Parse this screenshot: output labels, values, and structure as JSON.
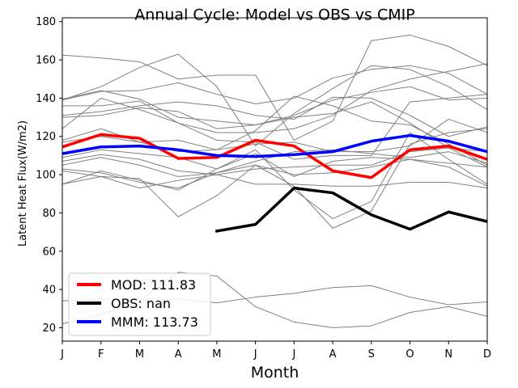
{
  "chart_data": {
    "type": "line",
    "title": "Annual Cycle: Model vs OBS vs CMIP",
    "xlabel": "Month",
    "ylabel": "Latent Heat Flux(W/m2)",
    "categories": [
      "J",
      "F",
      "M",
      "A",
      "M",
      "J",
      "J",
      "A",
      "S",
      "O",
      "N",
      "D"
    ],
    "ylim": [
      13,
      182
    ],
    "yticks": [
      20,
      40,
      60,
      80,
      100,
      120,
      140,
      160,
      180
    ],
    "legend_position": "lower-left",
    "highlight_series": [
      {
        "name": "MOD",
        "legend_label": "MOD: 111.83",
        "color": "#ff0000",
        "values": [
          114.5,
          121,
          119,
          108.5,
          109,
          118,
          115,
          102,
          98.5,
          113,
          115,
          108
        ]
      },
      {
        "name": "OBS",
        "legend_label": "OBS: nan",
        "color": "#000000",
        "values": [
          null,
          null,
          null,
          null,
          70.5,
          74,
          93,
          90.5,
          79,
          71.5,
          80.5,
          75.5
        ]
      },
      {
        "name": "MMM",
        "legend_label": "MMM: 113.73",
        "color": "#0000ff",
        "values": [
          111,
          114.5,
          115,
          113,
          110,
          109.5,
          110.5,
          112,
          117.5,
          120.5,
          117.5,
          112
        ]
      }
    ],
    "cmip_color": "#808080",
    "cmip_series": [
      {
        "name": "cmip-1",
        "values": [
          162.5,
          161,
          159,
          150,
          152,
          152,
          118,
          128,
          170,
          173,
          167,
          157
        ]
      },
      {
        "name": "cmip-2",
        "values": [
          139,
          146,
          156,
          163,
          146,
          115,
          132,
          145,
          157,
          155,
          146,
          134
        ]
      },
      {
        "name": "cmip-3",
        "values": [
          139,
          143.5,
          144,
          148,
          142,
          137,
          140,
          150.5,
          155,
          157,
          153,
          142
        ]
      },
      {
        "name": "cmip-4",
        "values": [
          139.5,
          144,
          139.5,
          130,
          128,
          126,
          131,
          139,
          143,
          146,
          139,
          140
        ]
      },
      {
        "name": "cmip-5",
        "values": [
          131,
          133,
          136,
          138,
          136,
          131,
          129,
          140.5,
          140,
          131,
          120,
          125
        ]
      },
      {
        "name": "cmip-6",
        "values": [
          136,
          136,
          138.5,
          127,
          122,
          122,
          124,
          131,
          144,
          150,
          154,
          158
        ]
      },
      {
        "name": "cmip-7",
        "values": [
          130,
          131,
          135,
          133,
          124,
          126,
          130,
          132,
          138,
          127,
          114,
          104
        ]
      },
      {
        "name": "cmip-8",
        "values": [
          118,
          124,
          117,
          112,
          113,
          123,
          141,
          136,
          128,
          126,
          116,
          105
        ]
      },
      {
        "name": "cmip-9",
        "values": [
          124,
          140,
          134,
          127,
          118,
          117,
          108,
          110,
          110,
          138,
          140,
          142
        ]
      },
      {
        "name": "cmip-10",
        "values": [
          117,
          120,
          117,
          118,
          113,
          116,
          117,
          112,
          112,
          115,
          129,
          122
        ]
      },
      {
        "name": "cmip-11",
        "values": [
          109,
          113,
          111,
          109,
          103,
          111,
          99,
          107,
          109,
          108,
          104,
          94
        ]
      },
      {
        "name": "cmip-12",
        "values": [
          107,
          110.5,
          108,
          102,
          100,
          103,
          104,
          105,
          105,
          112,
          114,
          112
        ]
      },
      {
        "name": "cmip-13",
        "values": [
          105,
          109,
          105,
          99,
          101,
          107,
          112,
          113,
          111,
          109,
          112,
          106
        ]
      },
      {
        "name": "cmip-14",
        "values": [
          103,
          101,
          96,
          93,
          101,
          105,
          94,
          72,
          81,
          116,
          122,
          124
        ]
      },
      {
        "name": "cmip-15",
        "values": [
          102,
          99,
          93,
          97,
          100,
          95,
          95,
          94,
          94,
          96,
          96,
          93
        ]
      },
      {
        "name": "cmip-16",
        "values": [
          95,
          102,
          97,
          92,
          103,
          113,
          92,
          77,
          86,
          122,
          108,
          95
        ]
      },
      {
        "name": "cmip-17",
        "values": [
          95,
          99,
          98,
          78,
          89,
          105,
          100,
          101,
          104,
          108,
          106,
          104
        ]
      },
      {
        "name": "cmip-18",
        "values": [
          34,
          35,
          34,
          49,
          47,
          31,
          23,
          20,
          21,
          28,
          31,
          26
        ]
      },
      {
        "name": "cmip-19",
        "values": [
          22,
          27,
          34,
          35,
          33,
          36,
          38,
          41,
          42,
          36,
          32,
          33.5
        ]
      }
    ]
  }
}
